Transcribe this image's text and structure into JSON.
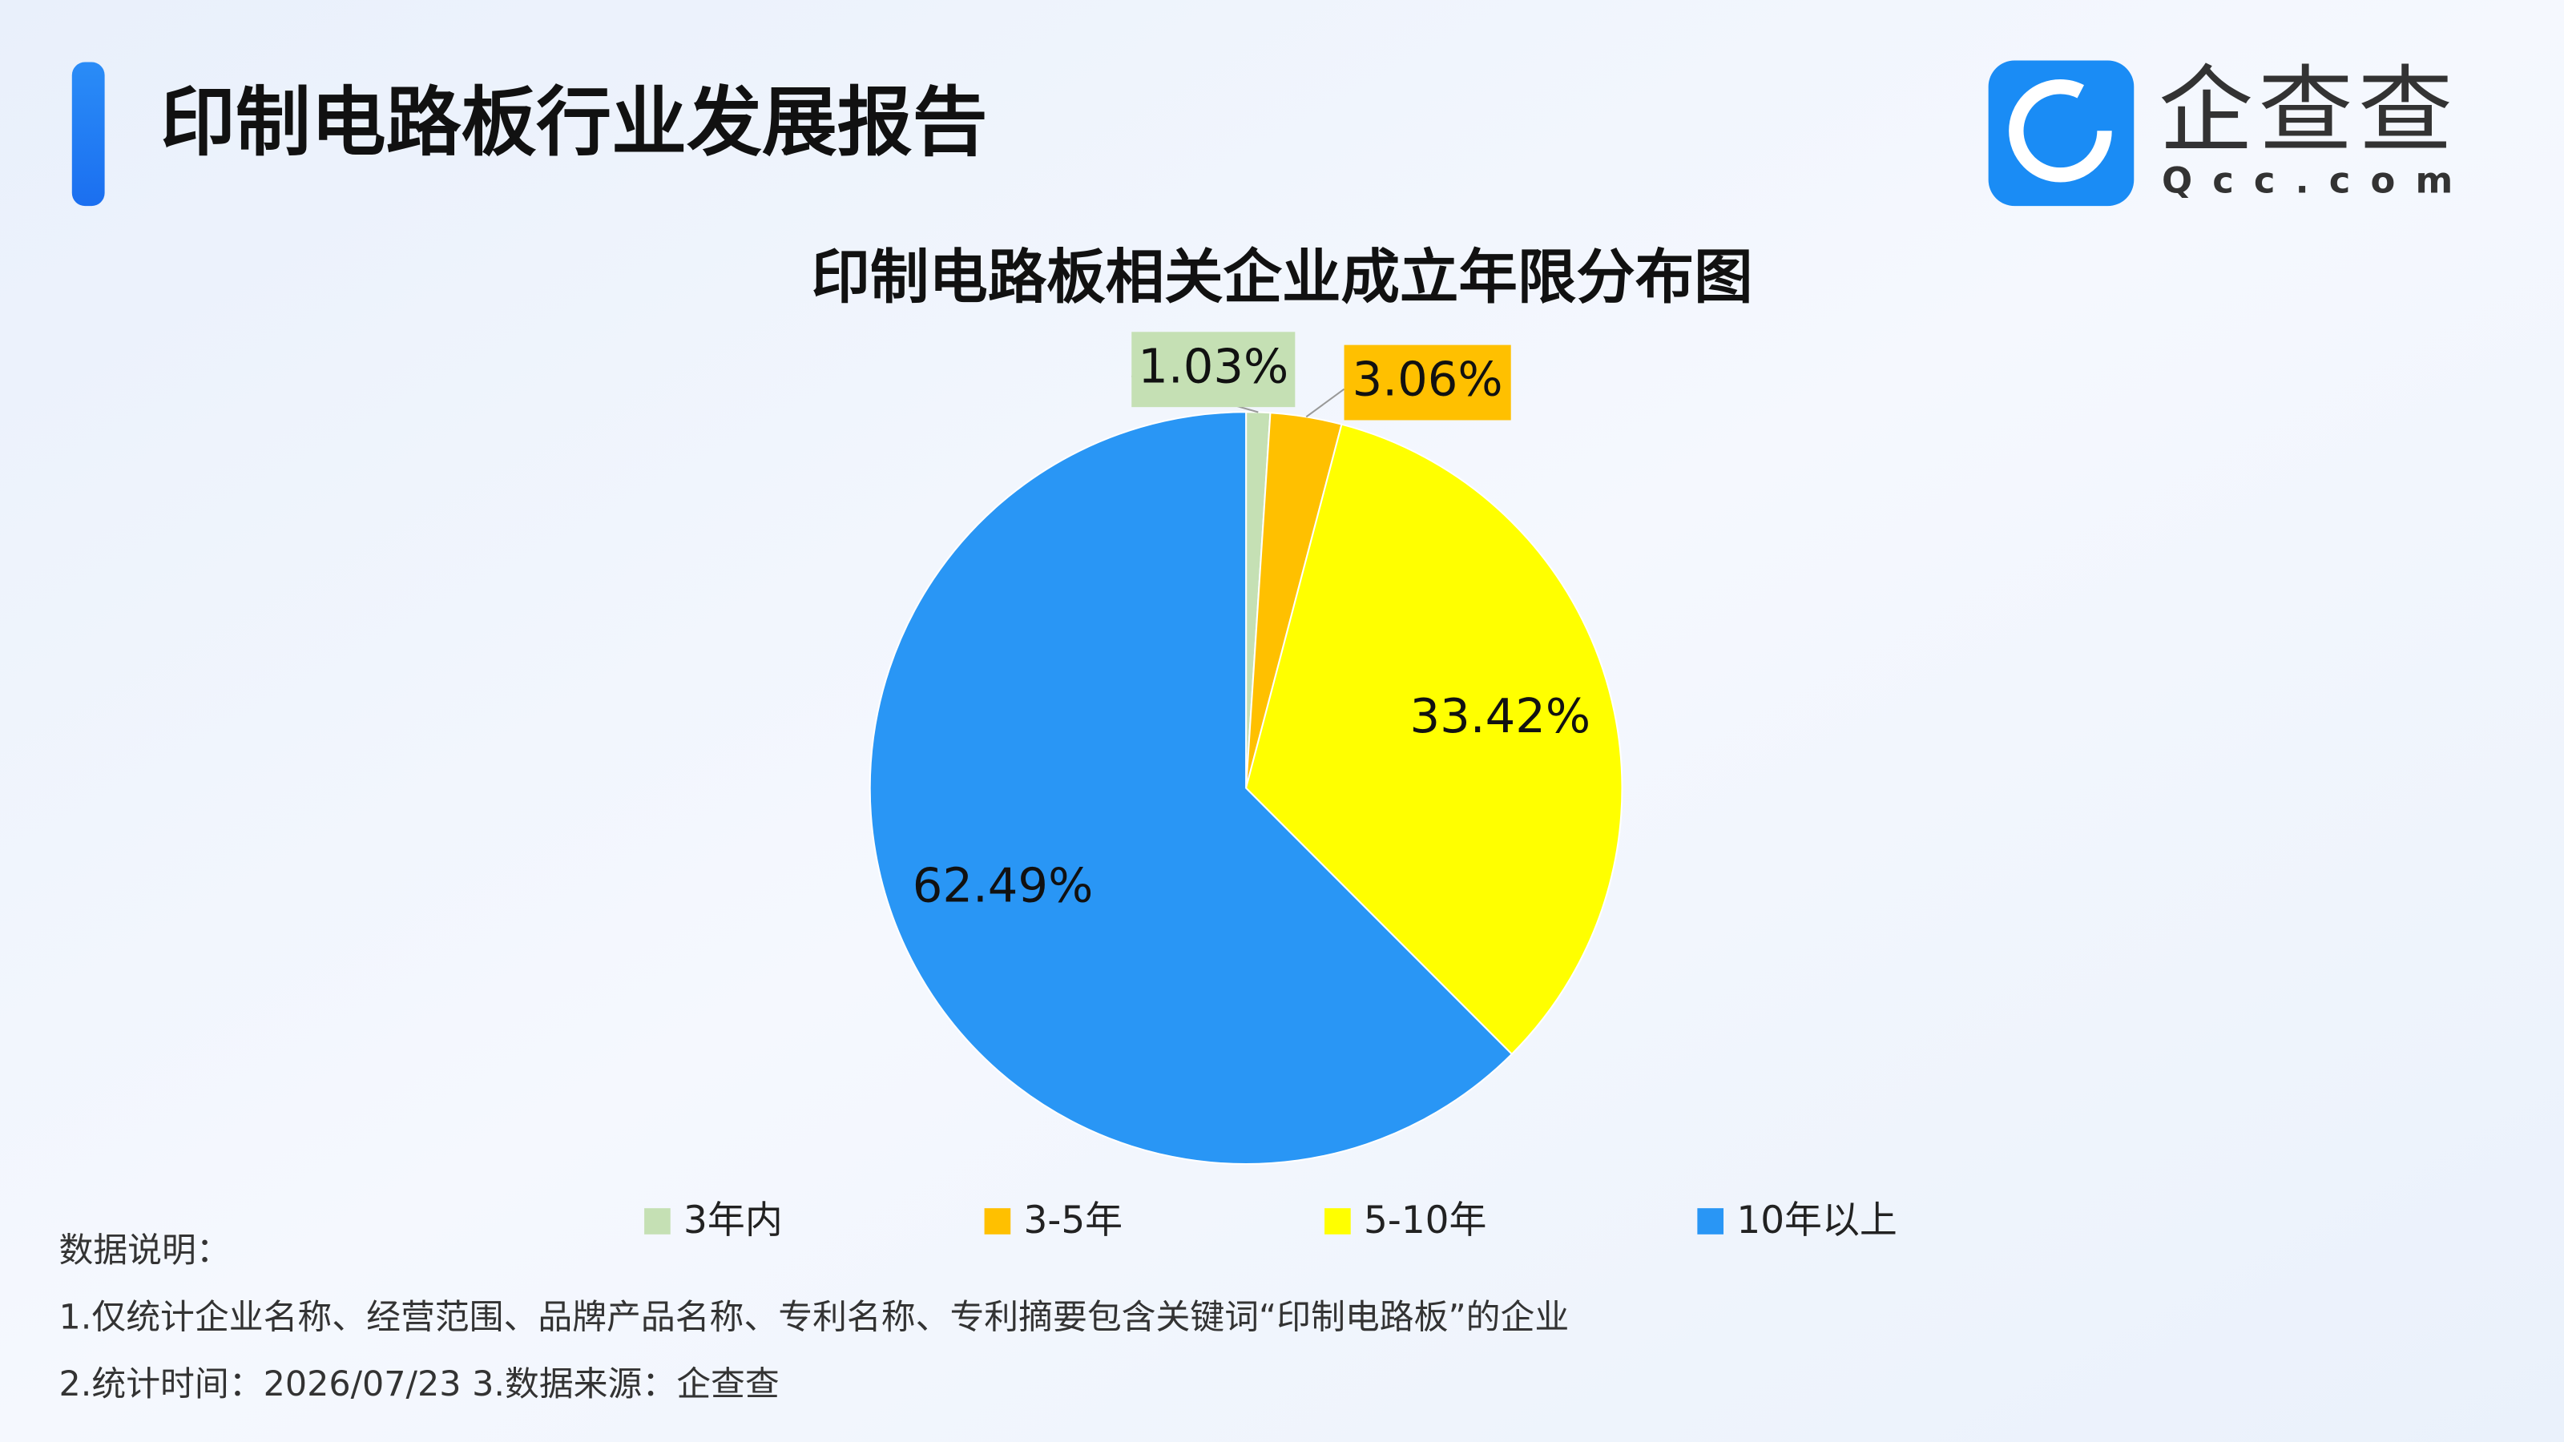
{
  "header": {
    "title": "印制电路板行业发展报告",
    "logo_name": "企查查",
    "logo_domain": "Qcc.com"
  },
  "chart_data": {
    "type": "pie",
    "title": "印制电路板相关企业成立年限分布图",
    "categories": [
      "3年内",
      "3-5年",
      "5-10年",
      "10年以上"
    ],
    "values": [
      1.03,
      3.06,
      33.42,
      62.49
    ],
    "value_labels": [
      "1.03%",
      "3.06%",
      "33.42%",
      "62.49%"
    ],
    "colors": [
      "#c5e0b4",
      "#ffc000",
      "#ffff00",
      "#2996f5"
    ]
  },
  "notes": [
    "数据说明：",
    "1.仅统计企业名称、经营范围、品牌产品名称、专利名称、专利摘要包含关键词“印制电路板”的企业",
    "2.统计时间：2026/07/23    3.数据来源：企查查"
  ]
}
